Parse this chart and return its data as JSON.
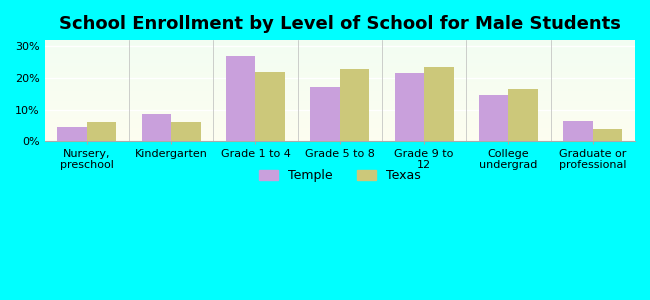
{
  "title": "School Enrollment by Level of School for Male Students",
  "categories": [
    "Nursery,\npreschool",
    "Kindergarten",
    "Grade 1 to 4",
    "Grade 5 to 8",
    "Grade 9 to\n12",
    "College\nundergrad",
    "Graduate or\nprofessional"
  ],
  "temple_values": [
    4.5,
    8.5,
    27.0,
    17.0,
    21.5,
    14.5,
    6.5
  ],
  "texas_values": [
    6.0,
    6.0,
    22.0,
    23.0,
    23.5,
    16.5,
    4.0
  ],
  "temple_color": "#c9a0dc",
  "texas_color": "#ccc87a",
  "bg_color": "#00FFFF",
  "plot_bg_top": "#f2fdf2",
  "plot_bg_bottom": "#fdfdf0",
  "ylim": [
    0,
    32
  ],
  "yticks": [
    0,
    10,
    20,
    30
  ],
  "ytick_labels": [
    "0%",
    "10%",
    "20%",
    "30%"
  ],
  "bar_width": 0.35,
  "legend_labels": [
    "Temple",
    "Texas"
  ],
  "title_fontsize": 13,
  "tick_fontsize": 8,
  "legend_fontsize": 9
}
